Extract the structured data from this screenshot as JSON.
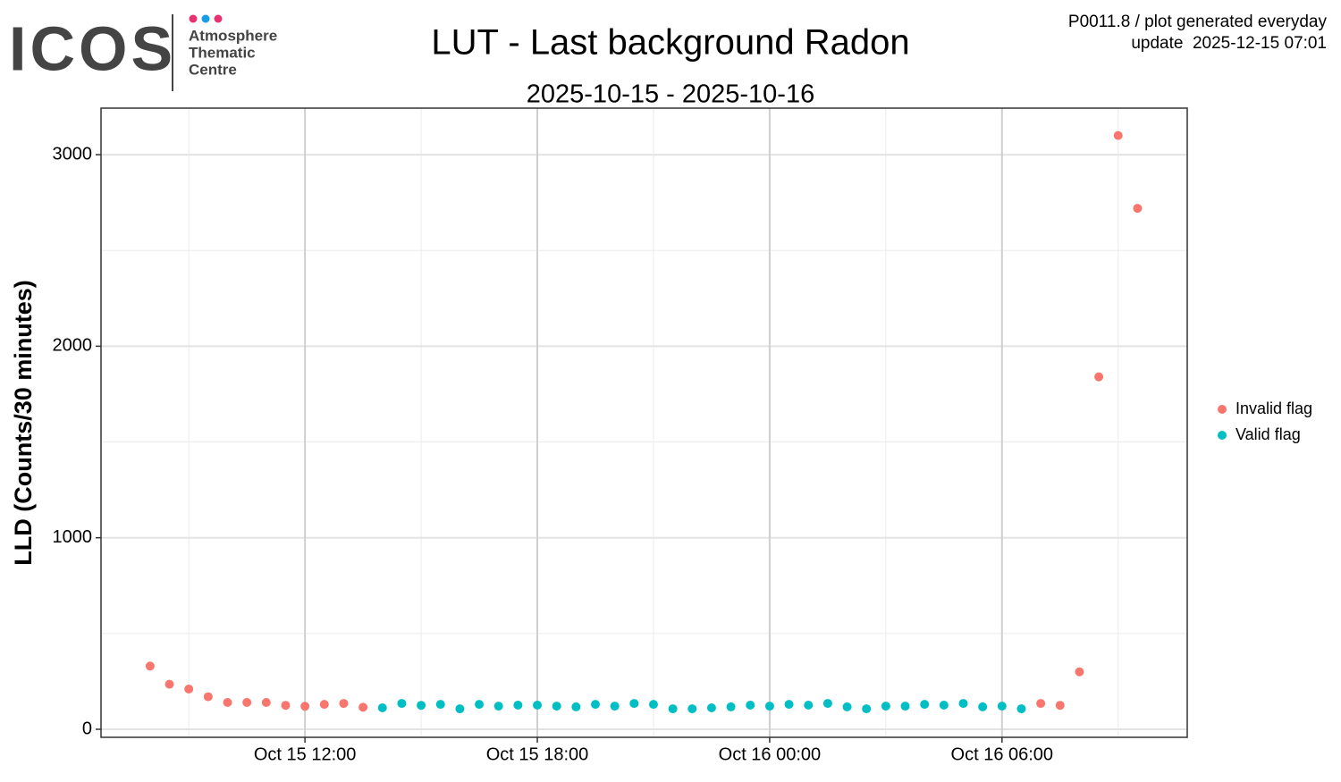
{
  "header": {
    "logo": "ICOS",
    "logo_lines": [
      "Atmosphere",
      "Thematic",
      "Centre"
    ],
    "info": [
      "P0011.8 / plot generated everyday",
      "update  2025-12-15 07:01"
    ]
  },
  "chart_data": {
    "type": "scatter",
    "title": "LUT - Last background Radon",
    "subtitle": "2025-10-15 - 2025-10-16",
    "y_label": "LLD (Counts/30 minutes)",
    "x": [
      "Oct 15 08:00",
      "Oct 15 08:30",
      "Oct 15 09:00",
      "Oct 15 09:30",
      "Oct 15 10:00",
      "Oct 15 10:30",
      "Oct 15 11:00",
      "Oct 15 11:30",
      "Oct 15 12:00",
      "Oct 15 12:30",
      "Oct 15 13:00",
      "Oct 15 13:30",
      "Oct 15 14:00",
      "Oct 15 14:30",
      "Oct 15 15:00",
      "Oct 15 15:30",
      "Oct 15 16:00",
      "Oct 15 16:30",
      "Oct 15 17:00",
      "Oct 15 17:30",
      "Oct 15 18:00",
      "Oct 15 18:30",
      "Oct 15 19:00",
      "Oct 15 19:30",
      "Oct 15 20:00",
      "Oct 15 20:30",
      "Oct 15 21:00",
      "Oct 15 21:30",
      "Oct 15 22:00",
      "Oct 15 22:30",
      "Oct 15 23:00",
      "Oct 15 23:30",
      "Oct 16 00:00",
      "Oct 16 00:30",
      "Oct 16 01:00",
      "Oct 16 01:30",
      "Oct 16 02:00",
      "Oct 16 02:30",
      "Oct 16 03:00",
      "Oct 16 03:30",
      "Oct 16 04:00",
      "Oct 16 04:30",
      "Oct 16 05:00",
      "Oct 16 05:30",
      "Oct 16 06:00",
      "Oct 16 06:30",
      "Oct 16 07:00",
      "Oct 16 07:30",
      "Oct 16 08:00",
      "Oct 16 08:30",
      "Oct 16 09:00",
      "Oct 16 09:30"
    ],
    "series": [
      {
        "name": "Invalid flag",
        "color": "#f8766d",
        "values": [
          330,
          235,
          210,
          170,
          140,
          140,
          140,
          125,
          120,
          130,
          135,
          115,
          null,
          null,
          null,
          null,
          null,
          null,
          null,
          null,
          null,
          null,
          null,
          null,
          null,
          null,
          null,
          null,
          null,
          null,
          null,
          null,
          null,
          null,
          null,
          null,
          null,
          null,
          null,
          null,
          null,
          null,
          null,
          null,
          null,
          null,
          135,
          125,
          300,
          1840,
          3100,
          2720
        ]
      },
      {
        "name": "Valid flag",
        "color": "#00bfc4",
        "values": [
          null,
          null,
          null,
          null,
          null,
          null,
          null,
          null,
          null,
          null,
          null,
          null,
          112,
          135,
          125,
          130,
          107,
          130,
          121,
          126,
          126,
          121,
          117,
          130,
          121,
          135,
          130,
          107,
          107,
          112,
          117,
          126,
          121,
          130,
          126,
          135,
          117,
          107,
          121,
          121,
          130,
          126,
          135,
          117,
          121,
          107,
          null,
          null,
          null,
          null,
          null,
          null
        ]
      }
    ],
    "xlim": [
      "Oct 15 06:44",
      "Oct 16 10:47"
    ],
    "xticks": [
      "Oct 15 12:00",
      "Oct 15 18:00",
      "Oct 16 00:00",
      "Oct 16 06:00"
    ],
    "ylim": [
      -42,
      3243
    ],
    "yticks": [
      0,
      1000,
      2000,
      3000
    ],
    "grid": true,
    "legend": "right"
  }
}
